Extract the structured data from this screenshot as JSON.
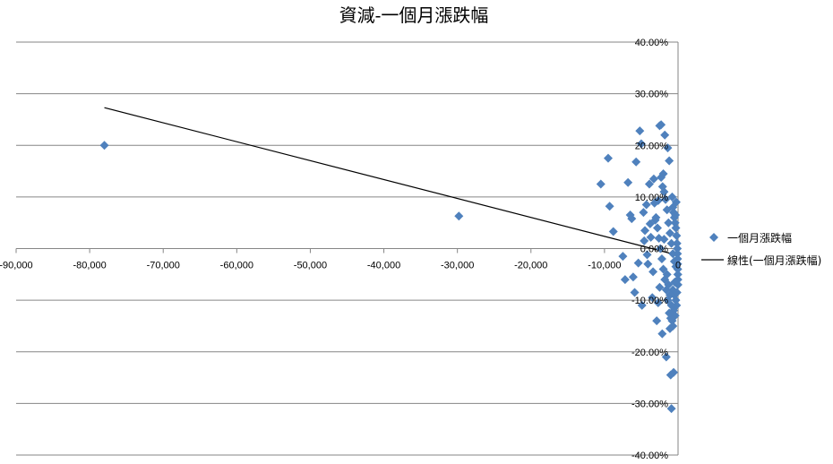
{
  "chart_data": {
    "type": "scatter",
    "title": "資減-一個月漲跌幅",
    "xlabel": "",
    "ylabel": "",
    "xlim": [
      -90000,
      0
    ],
    "ylim": [
      -40,
      40
    ],
    "x_ticks": [
      "-90,000",
      "-80,000",
      "-70,000",
      "-60,000",
      "-50,000",
      "-40,000",
      "-30,000",
      "-20,000",
      "-10,000",
      "0"
    ],
    "y_ticks": [
      "40.00%",
      "30.00%",
      "20.00%",
      "10.00%",
      "0.00%",
      "-10.00%",
      "-20.00%",
      "-30.00%",
      "-40.00%"
    ],
    "grid": "horizontal",
    "legend_position": "right",
    "colors": {
      "points": "#4f81bd",
      "trendline": "#000000",
      "grid": "#868686"
    },
    "series": [
      {
        "name": "一個月漲跌幅",
        "marker": "diamond",
        "points": [
          [
            -78000,
            20
          ],
          [
            -29800,
            6.3
          ],
          [
            -10500,
            12.5
          ],
          [
            -9500,
            17.5
          ],
          [
            -9300,
            8.2
          ],
          [
            -8800,
            3.3
          ],
          [
            -7500,
            -1.5
          ],
          [
            -7200,
            -6
          ],
          [
            -6800,
            12.8
          ],
          [
            -6500,
            6.5
          ],
          [
            -6300,
            5.8
          ],
          [
            -6100,
            -5.5
          ],
          [
            -5900,
            -8.5
          ],
          [
            -5700,
            16.8
          ],
          [
            -5400,
            -2.8
          ],
          [
            -5200,
            22.8
          ],
          [
            -5000,
            20.3
          ],
          [
            -4900,
            -11
          ],
          [
            -4700,
            7
          ],
          [
            -4500,
            3.5
          ],
          [
            -4300,
            8.5
          ],
          [
            -4100,
            -3
          ],
          [
            -3900,
            12.5
          ],
          [
            -3700,
            2.2
          ],
          [
            -3500,
            -9.5
          ],
          [
            -3300,
            13.5
          ],
          [
            -3100,
            5.5
          ],
          [
            -2900,
            -14
          ],
          [
            -2700,
            9.3
          ],
          [
            -2500,
            23.8
          ],
          [
            -2300,
            24
          ],
          [
            -2150,
            -16.5
          ],
          [
            -2000,
            14.5
          ],
          [
            -1800,
            22
          ],
          [
            -1600,
            -21
          ],
          [
            -1400,
            19.5
          ],
          [
            -1200,
            17
          ],
          [
            -1000,
            -24.5
          ],
          [
            -900,
            -31
          ],
          [
            -800,
            10
          ],
          [
            -700,
            8
          ],
          [
            -600,
            7
          ],
          [
            -500,
            6
          ],
          [
            -400,
            5
          ],
          [
            -300,
            4
          ],
          [
            -200,
            2.5
          ],
          [
            -150,
            1
          ],
          [
            -100,
            0
          ],
          [
            -80,
            -1
          ],
          [
            -60,
            -2
          ],
          [
            -50,
            -3
          ],
          [
            -40,
            -4
          ],
          [
            -30,
            -5
          ],
          [
            -20,
            -6
          ],
          [
            -10,
            -7
          ],
          [
            -700,
            -8
          ],
          [
            -500,
            -9
          ],
          [
            -300,
            -10
          ],
          [
            -200,
            -11
          ],
          [
            -600,
            -12
          ],
          [
            -400,
            -13
          ],
          [
            -800,
            -14
          ],
          [
            -1000,
            -13.5
          ],
          [
            -1200,
            -12.5
          ],
          [
            -1400,
            -10
          ],
          [
            -1600,
            -8
          ],
          [
            -1800,
            -6
          ],
          [
            -2000,
            -4
          ],
          [
            -2200,
            -2
          ],
          [
            -2400,
            0
          ],
          [
            -2600,
            2
          ],
          [
            -2800,
            4
          ],
          [
            -3000,
            6
          ],
          [
            -1100,
            3
          ],
          [
            -900,
            1
          ],
          [
            -700,
            -1
          ],
          [
            -500,
            -2.5
          ],
          [
            -300,
            -3.5
          ],
          [
            -1300,
            5
          ],
          [
            -1500,
            7.5
          ],
          [
            -1700,
            9.5
          ],
          [
            -1900,
            11
          ],
          [
            -2100,
            12
          ],
          [
            -2300,
            13.8
          ],
          [
            -1500,
            -5
          ],
          [
            -1300,
            -7
          ],
          [
            -1100,
            -9
          ],
          [
            -900,
            -11
          ],
          [
            -2500,
            -7.5
          ],
          [
            -3400,
            -4.5
          ],
          [
            -3800,
            4.8
          ],
          [
            -4200,
            -1.2
          ],
          [
            -4600,
            1.5
          ],
          [
            -600,
            -24
          ],
          [
            -700,
            -15
          ],
          [
            -1100,
            -15.5
          ],
          [
            -250,
            9
          ],
          [
            -150,
            -8.5
          ],
          [
            -350,
            6.5
          ],
          [
            -450,
            -6.5
          ],
          [
            -1900,
            1.8
          ],
          [
            -2700,
            -10.5
          ],
          [
            -3200,
            8.8
          ]
        ]
      },
      {
        "name": "線性(一個月漲跌幅)",
        "type": "trendline",
        "line": [
          [
            -78000,
            27.3
          ],
          [
            0,
            -1.3
          ]
        ]
      }
    ]
  }
}
